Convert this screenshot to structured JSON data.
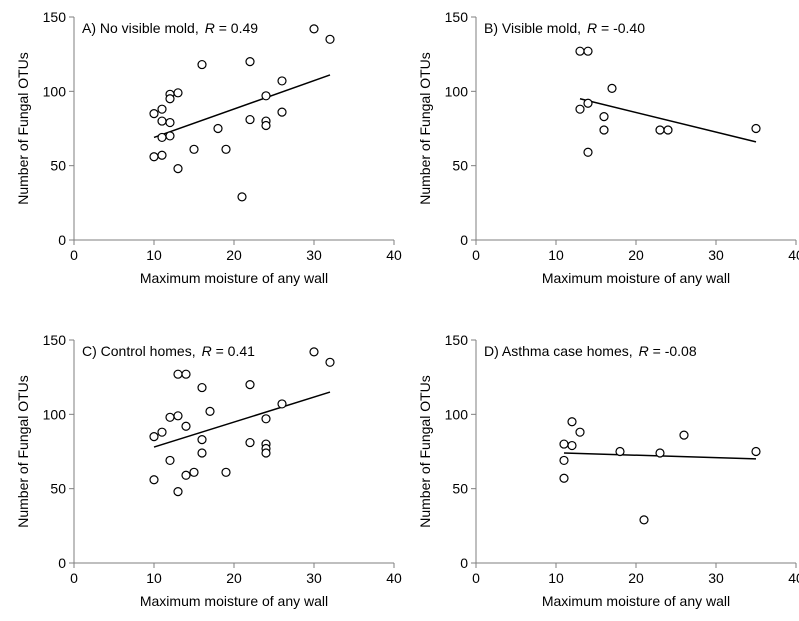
{
  "chart_data": [
    {
      "type": "scatter",
      "title": "A) No visible mold,",
      "r_label": "R",
      "r_value": " = 0.49",
      "xlabel": "Maximum  moisture of any wall",
      "ylabel": "Number  of Fungal OTUs",
      "xlim": [
        0,
        40
      ],
      "ylim": [
        0,
        150
      ],
      "xticks": [
        "0",
        "10",
        "20",
        "30",
        "40"
      ],
      "yticks": [
        "0",
        "50",
        "100",
        "150"
      ],
      "grid": false,
      "points": [
        [
          10,
          85
        ],
        [
          10,
          56
        ],
        [
          11,
          88
        ],
        [
          11,
          80
        ],
        [
          11,
          69
        ],
        [
          11,
          57
        ],
        [
          12,
          98
        ],
        [
          12,
          95
        ],
        [
          12,
          79
        ],
        [
          12,
          70
        ],
        [
          13,
          99
        ],
        [
          13,
          48
        ],
        [
          15,
          61
        ],
        [
          16,
          118
        ],
        [
          18,
          75
        ],
        [
          19,
          61
        ],
        [
          21,
          29
        ],
        [
          22,
          120
        ],
        [
          22,
          81
        ],
        [
          24,
          97
        ],
        [
          24,
          80
        ],
        [
          24,
          77
        ],
        [
          26,
          107
        ],
        [
          26,
          86
        ],
        [
          30,
          142
        ],
        [
          32,
          135
        ]
      ],
      "trend": [
        [
          10,
          69
        ],
        [
          32,
          111
        ]
      ]
    },
    {
      "type": "scatter",
      "title": "B) Visible mold,",
      "r_label": "R",
      "r_value": " = -0.40",
      "xlabel": "Maximum  moisture of any wall",
      "ylabel": "Number  of Fungal OTUs",
      "xlim": [
        0,
        40
      ],
      "ylim": [
        0,
        150
      ],
      "xticks": [
        "0",
        "10",
        "20",
        "30",
        "40"
      ],
      "yticks": [
        "0",
        "50",
        "100",
        "150"
      ],
      "grid": false,
      "points": [
        [
          13,
          127
        ],
        [
          14,
          127
        ],
        [
          13,
          88
        ],
        [
          14,
          92
        ],
        [
          14,
          59
        ],
        [
          16,
          83
        ],
        [
          16,
          74
        ],
        [
          17,
          102
        ],
        [
          23,
          74
        ],
        [
          24,
          74
        ],
        [
          35,
          75
        ]
      ],
      "trend": [
        [
          13,
          95
        ],
        [
          35,
          66
        ]
      ]
    },
    {
      "type": "scatter",
      "title": "C) Control homes,",
      "r_label": "R",
      "r_value": " = 0.41",
      "xlabel": "Maximum  moisture of any wall",
      "ylabel": "Number  of Fungal OTUs",
      "xlim": [
        0,
        40
      ],
      "ylim": [
        0,
        150
      ],
      "xticks": [
        "0",
        "10",
        "20",
        "30",
        "40"
      ],
      "yticks": [
        "0",
        "50",
        "100",
        "150"
      ],
      "grid": false,
      "points": [
        [
          10,
          85
        ],
        [
          10,
          56
        ],
        [
          11,
          88
        ],
        [
          12,
          98
        ],
        [
          12,
          69
        ],
        [
          13,
          127
        ],
        [
          13,
          99
        ],
        [
          13,
          48
        ],
        [
          14,
          127
        ],
        [
          14,
          92
        ],
        [
          14,
          59
        ],
        [
          15,
          61
        ],
        [
          16,
          118
        ],
        [
          16,
          83
        ],
        [
          16,
          74
        ],
        [
          17,
          102
        ],
        [
          19,
          61
        ],
        [
          22,
          120
        ],
        [
          22,
          81
        ],
        [
          24,
          97
        ],
        [
          24,
          80
        ],
        [
          24,
          77
        ],
        [
          24,
          74
        ],
        [
          26,
          107
        ],
        [
          30,
          142
        ],
        [
          32,
          135
        ]
      ],
      "trend": [
        [
          10,
          78
        ],
        [
          32,
          115
        ]
      ]
    },
    {
      "type": "scatter",
      "title": "D) Asthma  case homes,",
      "r_label": "R",
      "r_value": " = -0.08",
      "xlabel": "Maximum  moisture of any wall",
      "ylabel": "Number  of Fungal OTUs",
      "xlim": [
        0,
        40
      ],
      "ylim": [
        0,
        150
      ],
      "xticks": [
        "0",
        "10",
        "20",
        "30",
        "40"
      ],
      "yticks": [
        "0",
        "50",
        "100",
        "150"
      ],
      "grid": false,
      "points": [
        [
          11,
          80
        ],
        [
          11,
          69
        ],
        [
          11,
          57
        ],
        [
          12,
          95
        ],
        [
          12,
          79
        ],
        [
          13,
          88
        ],
        [
          18,
          75
        ],
        [
          21,
          29
        ],
        [
          23,
          74
        ],
        [
          26,
          86
        ],
        [
          35,
          75
        ]
      ],
      "trend": [
        [
          11,
          74
        ],
        [
          35,
          70
        ]
      ]
    }
  ]
}
